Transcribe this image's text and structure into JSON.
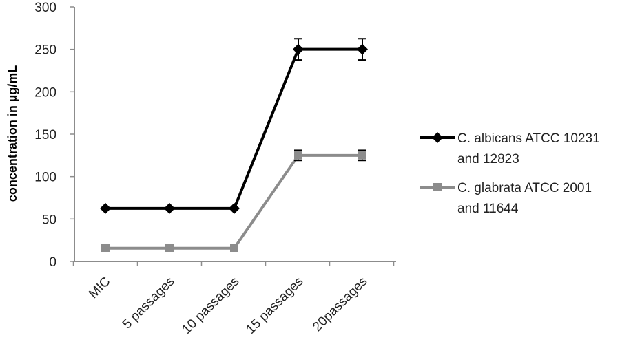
{
  "chart_data": {
    "type": "line",
    "title": "",
    "xlabel": "",
    "ylabel": "concentration in µg/mL",
    "ylim": [
      0,
      300
    ],
    "yticks": [
      0,
      50,
      100,
      150,
      200,
      250,
      300
    ],
    "categories": [
      "MIC",
      "5 passages",
      "10 passages",
      "15 passages",
      "20passages"
    ],
    "grid": false,
    "legend_position": "right",
    "series": [
      {
        "name_lines": [
          "C. albicans ATCC 10231",
          "and 12823"
        ],
        "values": [
          62.5,
          62.5,
          62.5,
          250,
          250
        ],
        "error": [
          0,
          0,
          0,
          12.5,
          12.5
        ],
        "color": "#000000",
        "marker": "diamond"
      },
      {
        "name_lines": [
          "C. glabrata ATCC 2001",
          "and 11644"
        ],
        "values": [
          15.6,
          15.6,
          15.6,
          125,
          125
        ],
        "error": [
          0,
          0,
          0,
          6,
          6
        ],
        "color": "#8c8c8c",
        "marker": "square"
      }
    ]
  }
}
